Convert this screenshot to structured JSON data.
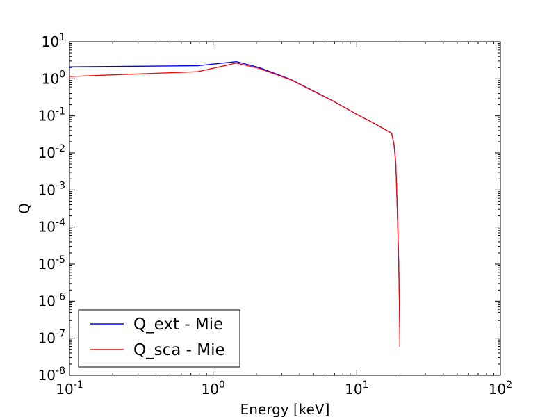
{
  "chart_data": {
    "type": "line",
    "xlabel": "Energy [keV]",
    "ylabel": "Q",
    "xscale": "log",
    "yscale": "log",
    "xlim": [
      0.1,
      100
    ],
    "ylim": [
      1e-08,
      10
    ],
    "grid": false,
    "legend_position": "lower-left",
    "x_ticks": [
      {
        "value": 0.1,
        "base": "10",
        "exp": "-1"
      },
      {
        "value": 1,
        "base": "10",
        "exp": "0"
      },
      {
        "value": 10,
        "base": "10",
        "exp": "1"
      },
      {
        "value": 100,
        "base": "10",
        "exp": "2"
      }
    ],
    "y_ticks": [
      {
        "value": 1e-08,
        "base": "10",
        "exp": "-8"
      },
      {
        "value": 1e-07,
        "base": "10",
        "exp": "-7"
      },
      {
        "value": 1e-06,
        "base": "10",
        "exp": "-6"
      },
      {
        "value": 1e-05,
        "base": "10",
        "exp": "-5"
      },
      {
        "value": 0.0001,
        "base": "10",
        "exp": "-4"
      },
      {
        "value": 0.001,
        "base": "10",
        "exp": "-3"
      },
      {
        "value": 0.01,
        "base": "10",
        "exp": "-2"
      },
      {
        "value": 0.1,
        "base": "10",
        "exp": "-1"
      },
      {
        "value": 1,
        "base": "10",
        "exp": "0"
      },
      {
        "value": 10,
        "base": "10",
        "exp": "1"
      }
    ],
    "series": [
      {
        "name": "Q_ext - Mie",
        "color": "#0000ff",
        "x": [
          0.1,
          0.78,
          1.45,
          2.1,
          3.5,
          5.0,
          7.0,
          10.0,
          13.0,
          17.5,
          18.2,
          18.7,
          19.0,
          19.3,
          19.6,
          19.8,
          19.9
        ],
        "y": [
          2.1,
          2.25,
          2.9,
          2.0,
          0.95,
          0.47,
          0.24,
          0.11,
          0.065,
          0.034,
          0.016,
          0.005,
          0.0008,
          0.0001,
          1e-05,
          1e-06,
          2e-07
        ]
      },
      {
        "name": "Q_sca - Mie",
        "color": "#ff0000",
        "x": [
          0.1,
          0.78,
          1.45,
          2.1,
          3.5,
          5.0,
          7.0,
          10.0,
          13.0,
          17.5,
          18.2,
          18.7,
          19.0,
          19.3,
          19.6,
          19.8,
          19.95
        ],
        "y": [
          1.15,
          1.55,
          2.65,
          1.9,
          0.93,
          0.46,
          0.24,
          0.11,
          0.065,
          0.034,
          0.016,
          0.005,
          0.0008,
          0.0001,
          1e-05,
          1e-06,
          6e-08
        ]
      }
    ]
  }
}
